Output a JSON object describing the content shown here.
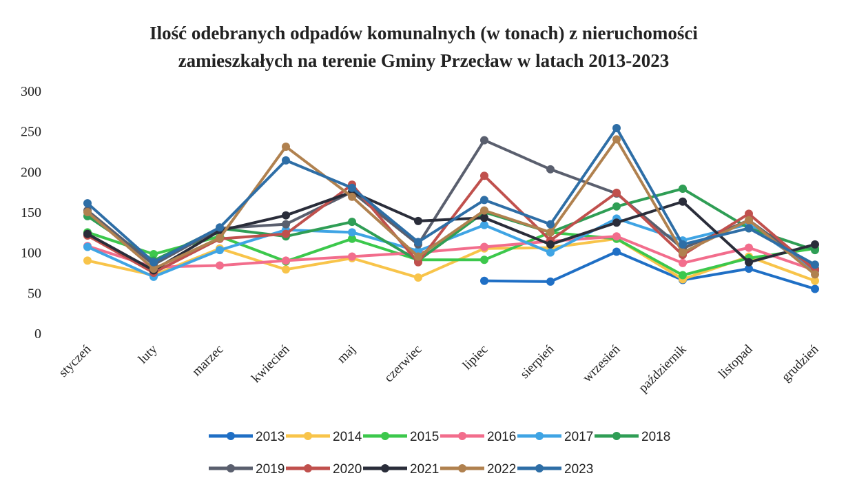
{
  "chart_data": {
    "type": "line",
    "title": [
      "Ilość odebranych odpadów komunalnych (w tonach) z nieruchomości",
      "zamieszkałych na terenie Gminy Przecław w latach 2013-2023"
    ],
    "categories": [
      "styczeń",
      "luty",
      "marzec",
      "kwiecień",
      "maj",
      "czerwiec",
      "lipiec",
      "sierpień",
      "wrzesień",
      "październik",
      "listopad",
      "grudzień"
    ],
    "ylim": [
      0,
      300
    ],
    "yticks": [
      0,
      50,
      100,
      150,
      200,
      250,
      300
    ],
    "grid": false,
    "legend": "bottom",
    "series": [
      {
        "name": "2013",
        "color": "#1f6fc5",
        "values": [
          null,
          null,
          null,
          null,
          null,
          null,
          65,
          64,
          101,
          66,
          80,
          55
        ]
      },
      {
        "name": "2014",
        "color": "#f8c44a",
        "values": [
          90,
          72,
          105,
          79,
          93,
          69,
          105,
          106,
          117,
          67,
          95,
          65
        ]
      },
      {
        "name": "2015",
        "color": "#3cc84c",
        "values": [
          125,
          98,
          120,
          89,
          117,
          91,
          91,
          125,
          117,
          72,
          93,
          105
        ]
      },
      {
        "name": "2016",
        "color": "#f26d8c",
        "values": [
          108,
          82,
          84,
          90,
          95,
          100,
          107,
          114,
          120,
          87,
          106,
          78
        ]
      },
      {
        "name": "2017",
        "color": "#3fa4e4",
        "values": [
          107,
          70,
          103,
          128,
          125,
          102,
          134,
          100,
          142,
          115,
          135,
          77
        ]
      },
      {
        "name": "2018",
        "color": "#2f9e55",
        "values": [
          145,
          90,
          130,
          120,
          138,
          90,
          150,
          125,
          157,
          179,
          130,
          103
        ]
      },
      {
        "name": "2019",
        "color": "#5a5f6e",
        "values": [
          152,
          85,
          130,
          135,
          175,
          110,
          239,
          203,
          173,
          105,
          140,
          80
        ]
      },
      {
        "name": "2020",
        "color": "#c0504d",
        "values": [
          121,
          75,
          117,
          123,
          184,
          88,
          195,
          115,
          174,
          97,
          148,
          78
        ]
      },
      {
        "name": "2021",
        "color": "#2a2d3a",
        "values": [
          123,
          78,
          127,
          146,
          175,
          139,
          143,
          110,
          137,
          163,
          88,
          110
        ]
      },
      {
        "name": "2022",
        "color": "#b0814f",
        "values": [
          150,
          80,
          118,
          231,
          169,
          95,
          152,
          125,
          240,
          100,
          140,
          73
        ]
      },
      {
        "name": "2023",
        "color": "#2e6ea6",
        "values": [
          161,
          88,
          131,
          214,
          180,
          113,
          165,
          135,
          254,
          110,
          130,
          85
        ]
      }
    ]
  }
}
